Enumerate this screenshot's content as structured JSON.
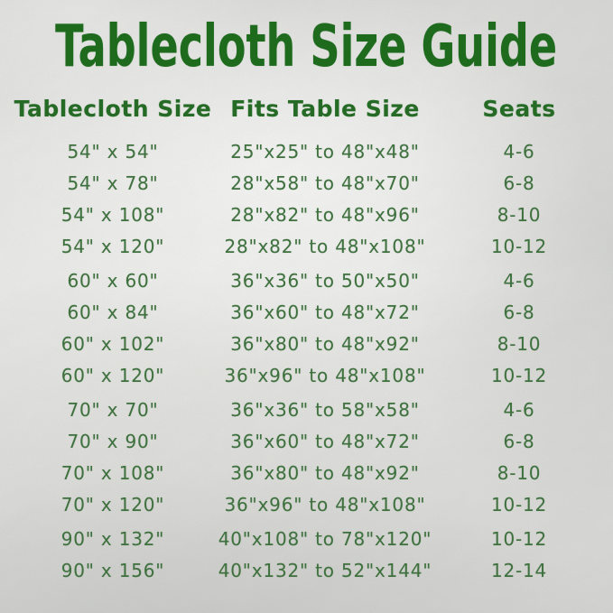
{
  "title": "Tablecloth Size Guide",
  "colors": {
    "title_green": "#1e6b1e",
    "header_green": "#256b25",
    "body_green": "#3f713f",
    "background_silver": "#d8d9d5"
  },
  "chart_data": {
    "type": "table",
    "title": "Tablecloth Size Guide",
    "columns": [
      "Tablecloth Size",
      "Fits Table Size",
      "Seats"
    ],
    "rows": [
      [
        "54\" x 54\"",
        "25\"x25\" to 48\"x48\"",
        "4-6"
      ],
      [
        "54\" x 78\"",
        "28\"x58\" to 48\"x70\"",
        "6-8"
      ],
      [
        "54\" x 108\"",
        "28\"x82\" to 48\"x96\"",
        "8-10"
      ],
      [
        "54\" x 120\"",
        "28\"x82\" to 48\"x108\"",
        "10-12"
      ],
      [
        "60\" x 60\"",
        "36\"x36\" to 50\"x50\"",
        "4-6"
      ],
      [
        "60\" x 84\"",
        "36\"x60\" to 48\"x72\"",
        "6-8"
      ],
      [
        "60\" x 102\"",
        "36\"x80\" to 48\"x92\"",
        "8-10"
      ],
      [
        "60\" x 120\"",
        "36\"x96\" to 48\"x108\"",
        "10-12"
      ],
      [
        "70\" x 70\"",
        "36\"x36\" to 58\"x58\"",
        "4-6"
      ],
      [
        "70\" x 90\"",
        "36\"x60\" to 48\"x72\"",
        "6-8"
      ],
      [
        "70\" x 108\"",
        "36\"x80\" to 48\"x92\"",
        "8-10"
      ],
      [
        "70\" x 120\"",
        "36\"x96\" to 48\"x108\"",
        "10-12"
      ],
      [
        "90\" x 132\"",
        "40\"x108\" to 78\"x120\"",
        "10-12"
      ],
      [
        "90\" x 156\"",
        "40\"x132\" to 52\"x144\"",
        "12-14"
      ]
    ],
    "group_start_row_indexes": [
      4,
      8,
      12
    ],
    "legend": "none",
    "grid": "off"
  }
}
